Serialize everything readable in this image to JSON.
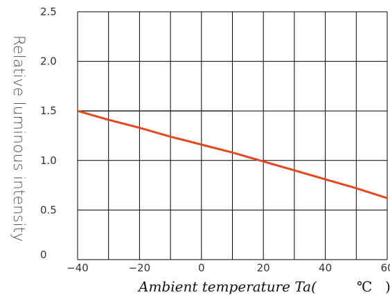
{
  "chart_data": {
    "type": "line",
    "title": "",
    "xlabel": "Ambient temperature Ta(",
    "xunit": "℃",
    "xunit_close": ")",
    "ylabel": "Relative luminous intensity",
    "xlim": [
      -40,
      60
    ],
    "ylim": [
      0,
      2.5
    ],
    "x_ticks": [
      -40,
      -20,
      0,
      20,
      40,
      60
    ],
    "x_tick_labels": [
      "−40",
      "−20",
      "0",
      "20",
      "40",
      "60"
    ],
    "y_ticks": [
      0,
      0.5,
      1.0,
      1.5,
      2.0,
      2.5
    ],
    "y_tick_labels": [
      "0",
      "0.5",
      "1.0",
      "1.5",
      "2.0",
      "2.5"
    ],
    "x_grid_step": 10,
    "y_grid_step": 0.5,
    "grid": true,
    "series": [
      {
        "color": "#e8461d",
        "x": [
          -40,
          -30,
          -20,
          -10,
          0,
          10,
          20,
          30,
          40,
          50,
          60
        ],
        "y": [
          1.5,
          1.41,
          1.33,
          1.24,
          1.16,
          1.08,
          0.99,
          0.9,
          0.81,
          0.72,
          0.62
        ]
      }
    ],
    "reference_lines": [
      {
        "color": "#000000",
        "x": [
          -40,
          10
        ],
        "y": [
          1.5,
          1.5
        ]
      }
    ]
  }
}
